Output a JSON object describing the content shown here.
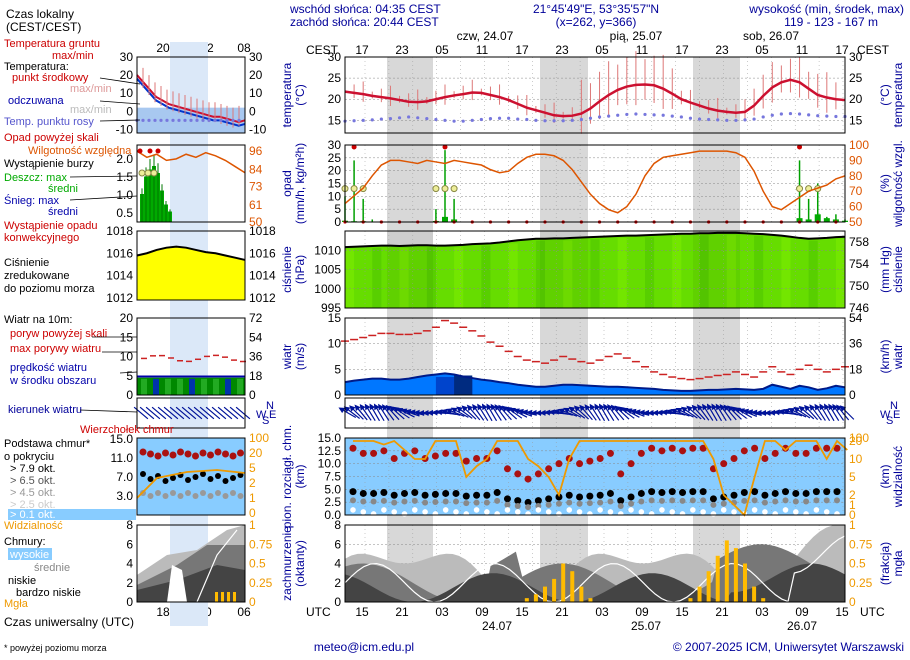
{
  "header": {
    "sunrise": "wschód słońca: 04:35 CEST",
    "sunset": "zachód słońca: 20:44 CEST",
    "coords": "21°45'49\"E, 53°35'57\"N",
    "grid": "(x=262, y=366)",
    "altitude_title": "wysokość (min, środek, max)",
    "altitude_values": "119 - 123 - 167 m",
    "local_time_label": "Czas lokalny\n(CEST/CEST)",
    "tz_label": "CEST",
    "utc_label": "UTC",
    "days_top": [
      "czw, 24.07",
      "pią, 25.07",
      "sob, 26.07"
    ],
    "days_bottom": [
      "24.07",
      "25.07",
      "26.07"
    ],
    "top_hours": [
      "17",
      "23",
      "05",
      "11",
      "17",
      "23",
      "05",
      "11",
      "17",
      "23",
      "05",
      "11",
      "17"
    ],
    "bottom_hours": [
      "15",
      "21",
      "03",
      "09",
      "15",
      "21",
      "03",
      "09",
      "15",
      "21",
      "03",
      "09",
      "15"
    ],
    "legend_top_hours": [
      "20",
      "02",
      "08"
    ],
    "legend_bottom_hours": [
      "18",
      "00",
      "06"
    ]
  },
  "legend": {
    "temp": [
      "Temperatura gruntu",
      "max/min",
      "Temperatura:",
      "punkt środkowy",
      "max/min",
      "odczuwana",
      "max/min",
      "Temp. punktu rosy"
    ],
    "precip": [
      "Opad powyżej skali",
      "Wilgotność względna",
      "Wystąpienie burzy",
      "Deszcz: max",
      "średni",
      "Śnieg: max",
      "średni",
      "Wystąpienie opadu",
      "konwekcyjnego"
    ],
    "pressure": [
      "Ciśnienie",
      "zredukowane",
      "do poziomu morza"
    ],
    "wind": [
      "Wiatr na 10m:",
      "poryw powyżej skali",
      "max porywy wiatru",
      "prędkość wiatru",
      "w środku obszaru"
    ],
    "wind_dir": "kierunek wiatru",
    "cloud_base": [
      "Wierzchołek chmur",
      "Podstawa chmur*",
      "o pokryciu",
      "> 7.9 okt.",
      "> 6.5 okt.",
      "> 4.5 okt.",
      "> 2.5 okt.",
      "> 0.1 okt.",
      "Widzialność"
    ],
    "clouds": [
      "Chmury:",
      "wysokie",
      "średnie",
      "niskie",
      "bardzo niskie",
      "Mgła"
    ],
    "utc_footer": "Czas uniwersalny (UTC)",
    "footnote": "* powyżej poziomu morza"
  },
  "axis_titles": {
    "temp": [
      "temperatura",
      "(°C)"
    ],
    "temp_r": [
      "(°C)",
      "temperatura"
    ],
    "precip": [
      "opad",
      "(mm/h, kg/m²h)"
    ],
    "precip_r": [
      "(%)",
      "wilgotność wzgl."
    ],
    "press": [
      "ciśnienie",
      "(hPa)"
    ],
    "press_r": [
      "(mm Hg)",
      "ciśnienie"
    ],
    "wind": [
      "wiatr",
      "(m/s)"
    ],
    "wind_r": [
      "(km/h)",
      "wiatr"
    ],
    "cloud": [
      "pion. rozciągł. chm.",
      "(km)"
    ],
    "cloud_r": [
      "(km)",
      "widzialność"
    ],
    "cover": [
      "zachmurzenie",
      "(oktanty)"
    ],
    "cover_r": [
      "(frakcja)",
      "mgła"
    ]
  },
  "footer": {
    "email": "meteo@icm.edu.pl",
    "copyright": "© 2007-2025 ICM, Uniwersytet Warszawski"
  },
  "colors": {
    "temp": "#cc1030",
    "dew": "#7777dd",
    "humidity": "#dd5500",
    "rain": "#00a000",
    "pressure_fill": "#66dd00",
    "wind_fill": "#0077ff",
    "gust": "#cc2222",
    "wind_arrow": "#001399",
    "cloud_bg": "#88ccff",
    "visibility": "#ee9900",
    "fog": "#ffbb00",
    "night": "#d8d8d8",
    "axis_text": "#000099",
    "label_red": "#cc0000"
  },
  "chart_data": [
    {
      "type": "line",
      "title": "temperatura",
      "ylabel": "(°C)",
      "ylim": [
        12,
        30
      ],
      "yticks": [
        15,
        20,
        25,
        30
      ],
      "legend_ylim": [
        -12,
        30
      ],
      "legend_yticks": [
        -10,
        0,
        10,
        20,
        30
      ],
      "series": [
        {
          "name": "punkt środkowy",
          "values": [
            21.8,
            21.5,
            21.2,
            20.8,
            20.5,
            20.2,
            19.8,
            19.4,
            19.3,
            19.5,
            20.0,
            20.5,
            20.9,
            21.2,
            21.6,
            21.5,
            21.0,
            20.5,
            19.8,
            18.9,
            18.0,
            17.4,
            16.8,
            16.2,
            16.0,
            16.1,
            16.6,
            17.8,
            19.5,
            21.0,
            22.2,
            23.0,
            23.4,
            23.5,
            23.3,
            22.5,
            21.3,
            20.0,
            19.2,
            18.5,
            17.8,
            17.3,
            17.0,
            16.8,
            17.0,
            18.5,
            20.8,
            22.8,
            24.0,
            24.6,
            24.0,
            22.5,
            21.0,
            20.4,
            20.0,
            19.8
          ]
        },
        {
          "name": "Temp. punktu rosy",
          "values": [
            14.8,
            14.9,
            15.0,
            15.1,
            15.3,
            15.4,
            15.6,
            15.8,
            15.6,
            15.4,
            15.2,
            15.0,
            14.8,
            14.8,
            15.0,
            15.2,
            15.4,
            15.5,
            15.5,
            15.3,
            15.2,
            15.0,
            14.9,
            14.9,
            14.9,
            15.0,
            15.2,
            15.5,
            15.8,
            16.0,
            16.2,
            16.4,
            16.5,
            16.4,
            16.3,
            16.2,
            16.0,
            15.8,
            15.5,
            15.3,
            15.2,
            15.1,
            15.0,
            15.0,
            15.1,
            15.3,
            15.8,
            16.2,
            16.5,
            16.6,
            16.5,
            16.3,
            16.1,
            16.0,
            15.9,
            15.9
          ]
        }
      ]
    },
    {
      "type": "bar",
      "title": "opad",
      "ylabel": "(mm/h, kg/m²h)",
      "ylim": [
        0,
        30
      ],
      "yticks": [
        0,
        5,
        10,
        15,
        20,
        25,
        30
      ],
      "y2label": "(%)",
      "y2lim": [
        50,
        100
      ],
      "y2ticks": [
        50,
        60,
        70,
        80,
        90,
        100
      ],
      "legend_yticks": [
        0.5,
        1.0,
        1.5,
        2.0
      ],
      "legend_y2ticks": [
        50,
        61,
        73,
        84,
        96
      ],
      "series": [
        {
          "name": "Deszcz: max",
          "values": [
            10,
            24,
            9,
            1,
            0,
            0,
            0,
            0,
            0,
            0,
            5,
            28,
            9,
            0,
            0,
            0,
            0,
            0,
            0,
            0,
            0,
            0,
            0,
            0,
            0,
            0,
            0,
            0,
            0,
            0,
            0,
            0,
            0,
            0,
            0,
            0,
            0,
            0,
            0,
            0,
            0,
            0,
            0,
            0,
            0,
            0,
            0,
            0,
            0,
            0,
            24,
            9,
            15,
            2,
            3,
            1
          ]
        },
        {
          "name": "średni",
          "values": [
            0.5,
            0.3,
            0.3,
            0,
            0,
            0,
            0,
            0,
            0,
            0,
            0.4,
            2,
            1,
            0,
            0,
            0,
            0,
            0,
            0,
            0,
            0,
            0,
            0,
            0,
            0,
            0,
            0,
            0,
            0,
            0,
            0,
            0,
            0,
            0,
            0,
            0,
            0,
            0,
            0,
            0,
            0,
            0,
            0,
            0,
            0,
            0,
            0,
            0,
            0,
            0,
            1.5,
            1,
            3,
            1.5,
            1,
            0.5
          ]
        },
        {
          "name": "Wilgotność względna",
          "values": [
            62,
            67,
            72,
            80,
            87,
            90,
            90,
            89,
            88,
            90,
            89,
            88,
            90,
            89,
            88,
            87,
            84,
            82,
            83,
            88,
            92,
            94,
            94,
            93,
            90,
            84,
            76,
            68,
            62,
            58,
            56,
            60,
            68,
            80,
            88,
            92,
            93,
            94,
            95,
            96,
            96,
            96,
            96,
            95,
            92,
            83,
            70,
            60,
            58,
            62,
            66,
            70,
            72,
            74,
            78,
            80
          ]
        }
      ]
    },
    {
      "type": "area",
      "title": "ciśnienie",
      "ylabel": "(hPa)",
      "ylim": [
        995,
        1015
      ],
      "yticks": [
        995,
        1000,
        1005,
        1010
      ],
      "y2label": "(mm Hg)",
      "y2ticks": [
        746,
        750,
        754,
        758
      ],
      "legend_ylim": [
        1011.8,
        1018
      ],
      "legend_yticks": [
        1012,
        1014,
        1016,
        1018
      ],
      "series": [
        {
          "name": "Ciśnienie",
          "values": [
            1010.8,
            1010.9,
            1011.0,
            1011.1,
            1011.2,
            1011.2,
            1011.1,
            1011.2,
            1011.3,
            1011.3,
            1011.2,
            1011.2,
            1011.3,
            1011.4,
            1011.6,
            1011.7,
            1011.8,
            1012.0,
            1012.3,
            1012.6,
            1012.8,
            1013.0,
            1013.0,
            1013.1,
            1013.1,
            1013.2,
            1013.3,
            1013.4,
            1013.5,
            1013.6,
            1013.7,
            1013.8,
            1013.8,
            1013.9,
            1014.0,
            1014.1,
            1014.2,
            1014.3,
            1014.3,
            1014.4,
            1014.4,
            1014.5,
            1014.5,
            1014.5,
            1014.4,
            1014.3,
            1014.2,
            1014.0,
            1013.8,
            1013.5,
            1013.2,
            1013.0,
            1013.1,
            1013.2,
            1013.4,
            1013.5
          ]
        }
      ]
    },
    {
      "type": "line",
      "title": "wiatr",
      "ylabel": "(m/s)",
      "ylim": [
        0,
        15
      ],
      "yticks": [
        0,
        5,
        10,
        15
      ],
      "y2label": "(km/h)",
      "y2ticks": [
        0,
        18,
        36,
        54
      ],
      "legend_ylim": [
        0,
        20
      ],
      "legend_yticks": [
        0,
        5,
        10,
        15,
        20
      ],
      "legend_y2ticks": [
        0,
        18,
        36,
        54,
        72
      ],
      "series": [
        {
          "name": "prędkość wiatru",
          "values": [
            2.5,
            2.8,
            3.0,
            3.2,
            3.2,
            3.0,
            3.0,
            3.2,
            3.5,
            3.8,
            4.0,
            4.2,
            4.0,
            3.6,
            3.3,
            3.0,
            2.8,
            2.5,
            2.3,
            2.0,
            1.8,
            1.6,
            1.6,
            1.8,
            2.0,
            2.0,
            1.9,
            1.8,
            1.7,
            1.6,
            1.6,
            1.5,
            1.4,
            1.3,
            1.2,
            1.0,
            0.9,
            0.8,
            0.8,
            0.9,
            1.0,
            1.0,
            1.1,
            1.2,
            1.1,
            1.0,
            1.2,
            2.0,
            1.6,
            1.2,
            1.8,
            1.5,
            1.0,
            1.3,
            1.8,
            1.5
          ]
        },
        {
          "name": "max porywy wiatru",
          "values": [
            10.5,
            10.8,
            11.2,
            11.6,
            12.0,
            12.0,
            11.8,
            11.8,
            12.0,
            12.5,
            13.2,
            14.5,
            14.0,
            13.2,
            12.5,
            11.5,
            10.3,
            9.5,
            8.5,
            7.5,
            6.8,
            6.5,
            6.2,
            6.8,
            7.5,
            7.0,
            6.5,
            6.2,
            6.8,
            7.5,
            8.0,
            7.2,
            6.5,
            5.5,
            4.5,
            4.0,
            3.5,
            3.2,
            3.0,
            3.2,
            3.5,
            3.8,
            4.0,
            4.5,
            4.0,
            3.5,
            4.5,
            5.5,
            4.5,
            4.0,
            5.0,
            5.8,
            5.0,
            4.5,
            5.0,
            5.5
          ]
        }
      ]
    },
    {
      "type": "scatter",
      "title": "pion. rozciągł. chm.",
      "ylabel": "(km)",
      "ylim": [
        0,
        15
      ],
      "yticks": [
        0.0,
        2.5,
        5.0,
        7.5,
        10.0,
        12.5,
        15.0
      ],
      "y2label": "(km)",
      "y2ticks": [
        0,
        1,
        2,
        5,
        10,
        20,
        100
      ],
      "legend_yticks": [
        0,
        3.0,
        7.0,
        11.0,
        15.0
      ],
      "series": [
        {
          "name": "Wierzchołek chmur",
          "values": [
            13,
            12,
            12,
            12.5,
            11,
            12,
            12.5,
            11,
            11.5,
            12,
            12,
            10.5,
            11,
            11,
            12.5,
            9,
            8,
            7,
            8,
            9,
            10,
            11,
            10,
            10.5,
            11,
            12,
            8,
            10,
            12,
            13,
            12.5,
            13,
            12.5,
            13,
            13,
            9,
            10,
            11,
            12.5,
            13,
            11,
            12,
            13,
            12,
            12,
            13,
            13,
            13
          ]
        },
        {
          "name": "Widzialność",
          "values": [
            20,
            20,
            20,
            18,
            20,
            15,
            10,
            10,
            20,
            20,
            20,
            5,
            8,
            10,
            20,
            20,
            20,
            10,
            8,
            5,
            2,
            10,
            20,
            20,
            20,
            20,
            20,
            20,
            20,
            20,
            20,
            20,
            20,
            20,
            20,
            10,
            2,
            1,
            0,
            5,
            20,
            20,
            15,
            20,
            20,
            20,
            10,
            20,
            15
          ]
        }
      ]
    },
    {
      "type": "area",
      "title": "zachmurzenie",
      "ylabel": "(oktanty)",
      "ylim": [
        0,
        8
      ],
      "yticks": [
        0,
        2,
        4,
        6,
        8
      ],
      "y2label": "(frakcja)",
      "y2ticks": [
        0,
        0.25,
        0.5,
        0.75,
        1
      ],
      "series": [
        {
          "name": "Mgła",
          "values": [
            0,
            0,
            0,
            0,
            0,
            0,
            0,
            0,
            0,
            0,
            0,
            0,
            0,
            0,
            0,
            0,
            0,
            0,
            0,
            0,
            0.05,
            0.1,
            0.2,
            0.3,
            0.5,
            0.4,
            0.2,
            0.05,
            0,
            0,
            0,
            0,
            0,
            0,
            0,
            0,
            0,
            0,
            0.05,
            0.2,
            0.4,
            0.6,
            0.8,
            0.7,
            0.5,
            0.2,
            0.05,
            0,
            0,
            0,
            0,
            0,
            0,
            0,
            0,
            0
          ]
        }
      ]
    }
  ]
}
